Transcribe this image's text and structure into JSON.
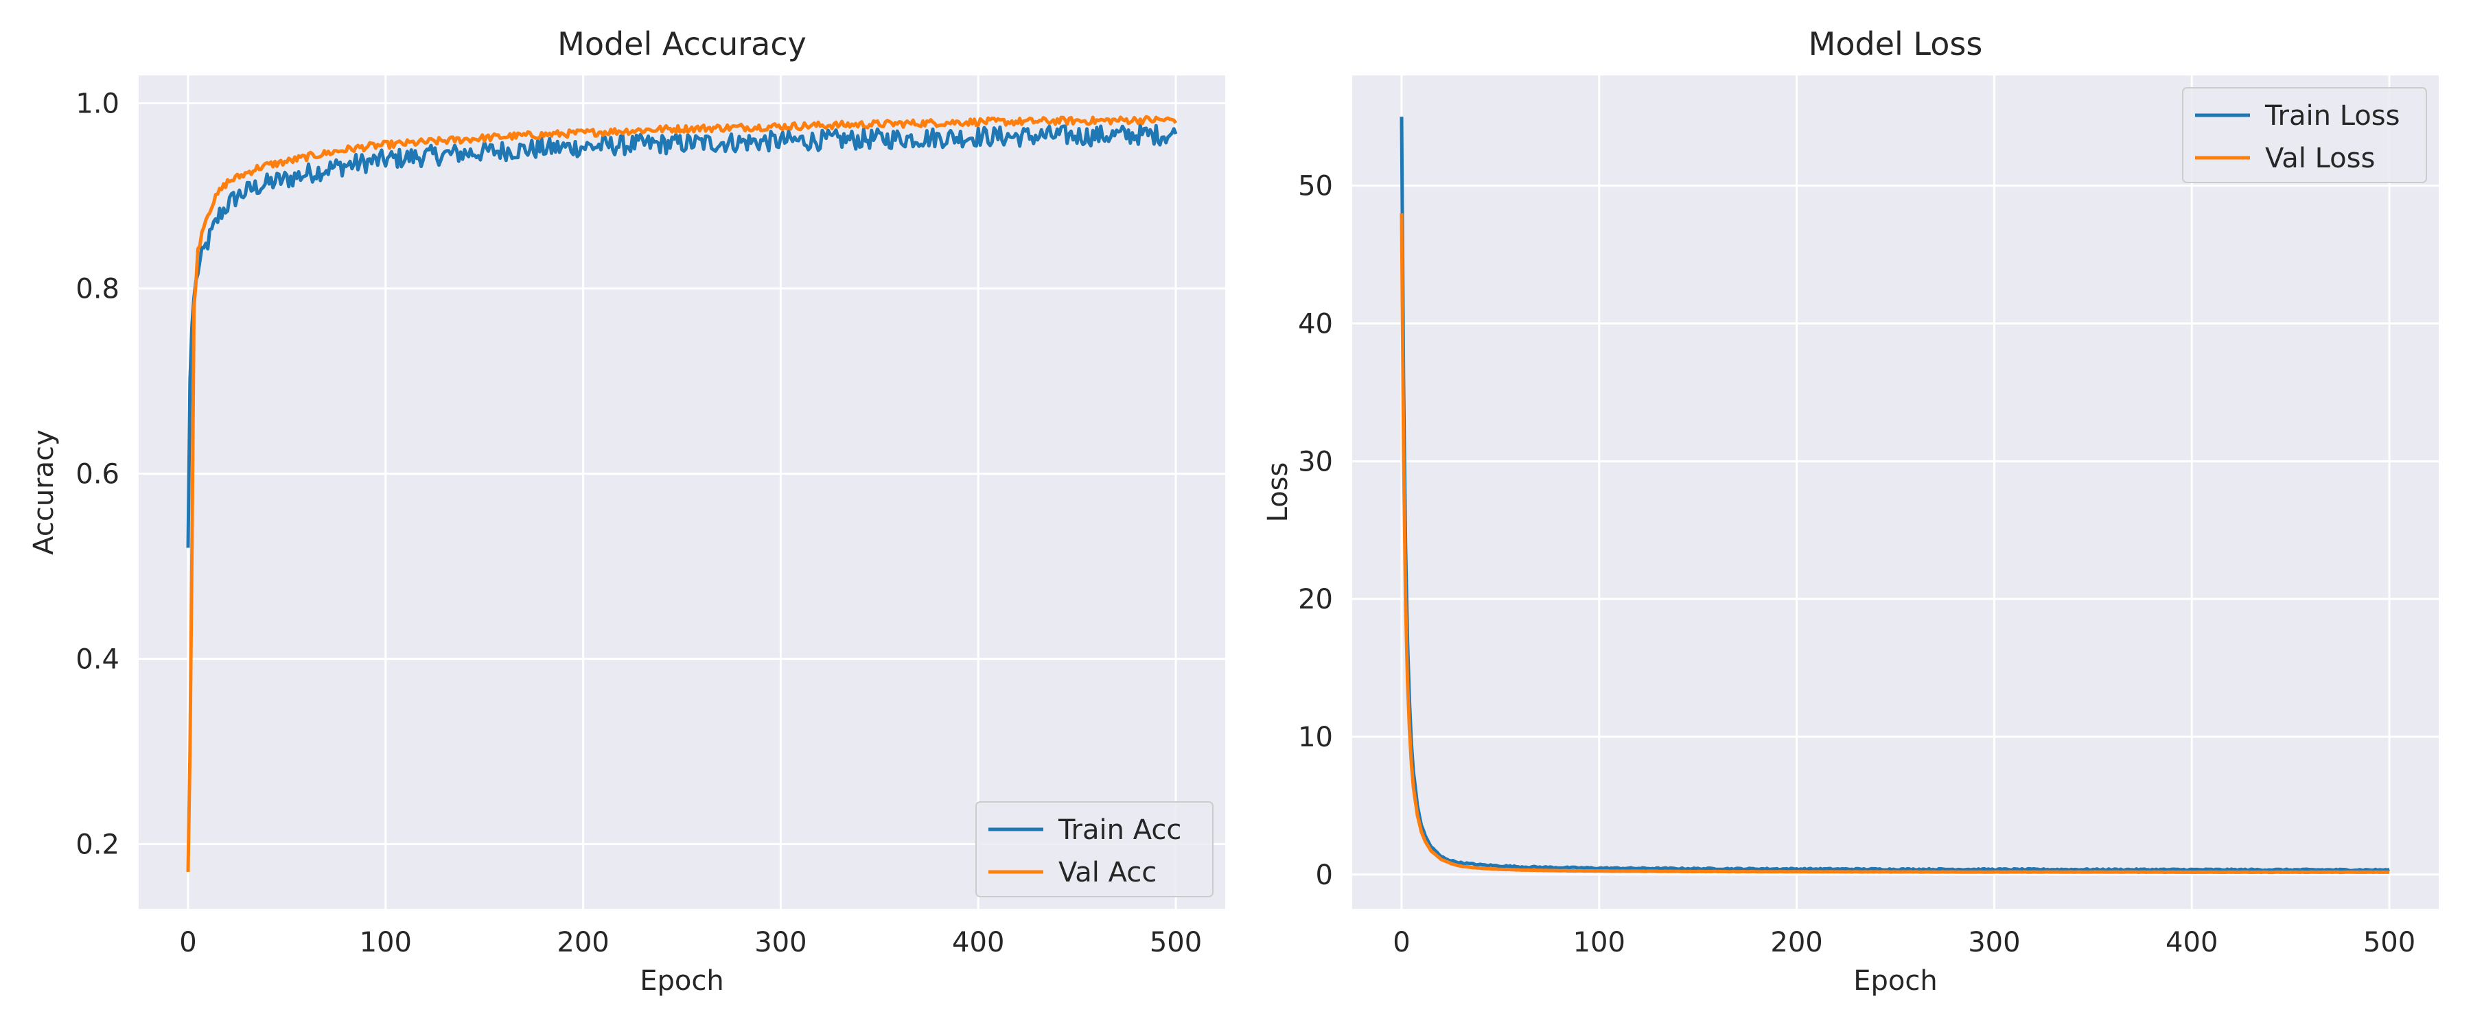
{
  "figure": {
    "background": "#ffffff",
    "axes_background": "#eaeaf2",
    "grid_color": "#ffffff"
  },
  "chart_data": [
    {
      "type": "line",
      "title": "Model Accuracy",
      "xlabel": "Epoch",
      "ylabel": "Accuracy",
      "xlim": [
        -25,
        525
      ],
      "ylim": [
        0.13,
        1.03
      ],
      "xticks": [
        0,
        100,
        200,
        300,
        400,
        500
      ],
      "xtick_labels": [
        "0",
        "100",
        "200",
        "300",
        "400",
        "500"
      ],
      "yticks": [
        0.2,
        0.4,
        0.6,
        0.8,
        1.0
      ],
      "ytick_labels": [
        "0.2",
        "0.4",
        "0.6",
        "0.8",
        "1.0"
      ],
      "grid": true,
      "legend_position": "lower right",
      "series": [
        {
          "name": "Train Acc",
          "color": "#1f77b4",
          "x": [
            0,
            1,
            2,
            3,
            5,
            8,
            12,
            16,
            20,
            25,
            30,
            35,
            40,
            45,
            50,
            60,
            70,
            80,
            90,
            100,
            120,
            140,
            160,
            180,
            200,
            220,
            240,
            260,
            280,
            300,
            320,
            340,
            360,
            380,
            400,
            420,
            440,
            460,
            480,
            500
          ],
          "y": [
            0.52,
            0.7,
            0.76,
            0.79,
            0.82,
            0.84,
            0.86,
            0.88,
            0.89,
            0.9,
            0.905,
            0.91,
            0.913,
            0.916,
            0.918,
            0.924,
            0.929,
            0.933,
            0.936,
            0.939,
            0.943,
            0.946,
            0.949,
            0.951,
            0.953,
            0.955,
            0.956,
            0.957,
            0.958,
            0.959,
            0.96,
            0.961,
            0.962,
            0.963,
            0.964,
            0.964,
            0.965,
            0.965,
            0.966,
            0.966
          ],
          "noise": 0.011
        },
        {
          "name": "Val Acc",
          "color": "#ff7f0e",
          "x": [
            0,
            1,
            2,
            3,
            5,
            8,
            12,
            16,
            20,
            25,
            30,
            35,
            40,
            45,
            50,
            60,
            70,
            80,
            90,
            100,
            120,
            140,
            160,
            180,
            200,
            220,
            240,
            260,
            280,
            300,
            320,
            340,
            360,
            380,
            400,
            420,
            440,
            460,
            480,
            500
          ],
          "y": [
            0.17,
            0.3,
            0.52,
            0.78,
            0.84,
            0.87,
            0.89,
            0.905,
            0.915,
            0.92,
            0.925,
            0.93,
            0.933,
            0.935,
            0.937,
            0.942,
            0.946,
            0.95,
            0.953,
            0.955,
            0.958,
            0.961,
            0.964,
            0.966,
            0.968,
            0.97,
            0.972,
            0.973,
            0.974,
            0.975,
            0.976,
            0.977,
            0.978,
            0.979,
            0.98,
            0.98,
            0.981,
            0.981,
            0.982,
            0.982
          ],
          "noise": 0.004
        }
      ]
    },
    {
      "type": "line",
      "title": "Model Loss",
      "xlabel": "Epoch",
      "ylabel": "Loss",
      "xlim": [
        -25,
        525
      ],
      "ylim": [
        -2.5,
        58
      ],
      "xticks": [
        0,
        100,
        200,
        300,
        400,
        500
      ],
      "xtick_labels": [
        "0",
        "100",
        "200",
        "300",
        "400",
        "500"
      ],
      "yticks": [
        0,
        10,
        20,
        30,
        40,
        50
      ],
      "ytick_labels": [
        "0",
        "10",
        "20",
        "30",
        "40",
        "50"
      ],
      "grid": true,
      "legend_position": "upper right",
      "series": [
        {
          "name": "Train Loss",
          "color": "#1f77b4",
          "x": [
            0,
            1,
            2,
            3,
            4,
            5,
            6,
            8,
            10,
            12,
            15,
            20,
            25,
            30,
            40,
            50,
            60,
            80,
            100,
            150,
            200,
            250,
            300,
            350,
            400,
            450,
            500
          ],
          "y": [
            55,
            36,
            24,
            17,
            12.5,
            9.5,
            7.5,
            5.0,
            3.6,
            2.8,
            2.0,
            1.3,
            1.0,
            0.85,
            0.7,
            0.62,
            0.56,
            0.5,
            0.46,
            0.42,
            0.4,
            0.38,
            0.37,
            0.36,
            0.35,
            0.34,
            0.33
          ],
          "noise": 0.05
        },
        {
          "name": "Val Loss",
          "color": "#ff7f0e",
          "x": [
            0,
            1,
            2,
            3,
            4,
            5,
            6,
            8,
            10,
            12,
            15,
            20,
            25,
            30,
            40,
            50,
            60,
            80,
            100,
            150,
            200,
            250,
            300,
            350,
            400,
            450,
            500
          ],
          "y": [
            48,
            31,
            20,
            14,
            10.5,
            8,
            6.3,
            4.3,
            3.1,
            2.4,
            1.7,
            1.1,
            0.8,
            0.6,
            0.45,
            0.38,
            0.33,
            0.28,
            0.25,
            0.22,
            0.2,
            0.19,
            0.18,
            0.18,
            0.17,
            0.17,
            0.17
          ],
          "noise": 0.01
        }
      ]
    }
  ]
}
